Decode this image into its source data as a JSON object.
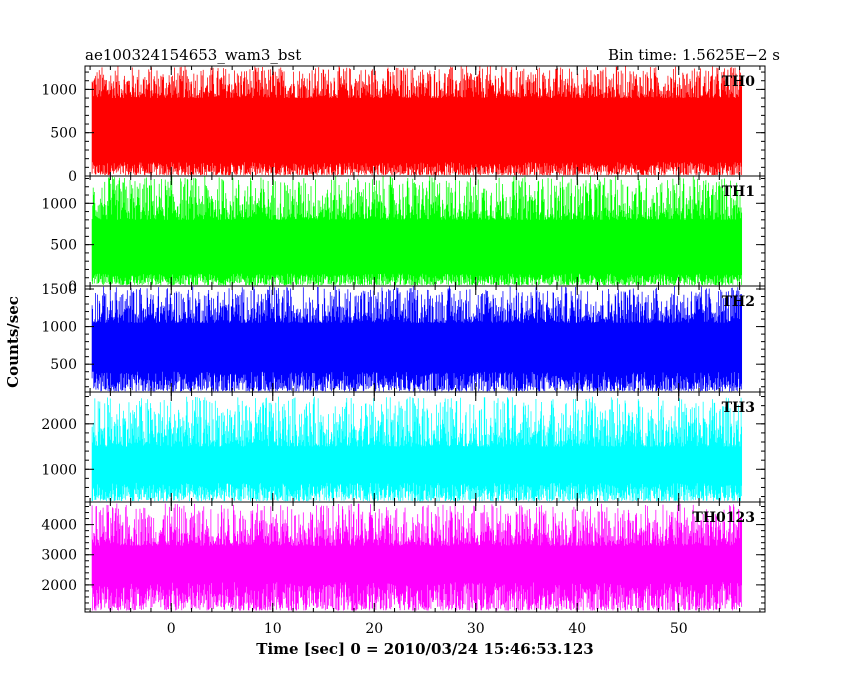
{
  "header": {
    "title": "ae100324154653_wam3_bst",
    "bin_time": "Bin time: 1.5625E−2 s"
  },
  "chart_data": {
    "type": "line",
    "xlabel": "Time [sec] 0 = 2010/03/24 15:46:53.123",
    "ylabel": "Counts/sec",
    "xlim": [
      -8.5,
      58.5
    ],
    "x_range": [
      -7.8,
      56.2
    ],
    "x_ticks": [
      0,
      10,
      20,
      30,
      40,
      50
    ],
    "x_tick_labels": [
      "0",
      "10",
      "20",
      "30",
      "40",
      "50"
    ],
    "x_minor_step": 2,
    "grid": false,
    "panels": [
      {
        "name": "TH0",
        "color": "#ff0000",
        "ylim": [
          0,
          1270
        ],
        "y_ticks": [
          0,
          500,
          1000
        ],
        "y_tick_labels": [
          "0",
          "500",
          "1000"
        ],
        "y_minor_step": 100,
        "envelope_low": [
          10,
          160
        ],
        "envelope_high": [
          900,
          1270
        ]
      },
      {
        "name": "TH1",
        "color": "#00ff00",
        "ylim": [
          0,
          1330
        ],
        "y_ticks": [
          0,
          500,
          1000
        ],
        "y_tick_labels": [
          "0",
          "500",
          "1000"
        ],
        "y_minor_step": 100,
        "envelope_low": [
          10,
          150
        ],
        "envelope_high": [
          800,
          1330
        ]
      },
      {
        "name": "TH2",
        "color": "#0000ff",
        "ylim": [
          130,
          1540
        ],
        "y_ticks": [
          500,
          1000,
          1500
        ],
        "y_tick_labels": [
          "500",
          "1000",
          "1500"
        ],
        "y_minor_step": 100,
        "envelope_low": [
          140,
          400
        ],
        "envelope_high": [
          1050,
          1540
        ]
      },
      {
        "name": "TH3",
        "color": "#00ffff",
        "ylim": [
          280,
          2700
        ],
        "y_ticks": [
          1000,
          2000
        ],
        "y_tick_labels": [
          "1000",
          "2000"
        ],
        "y_minor_step": 200,
        "envelope_low": [
          300,
          700
        ],
        "envelope_high": [
          1500,
          2600
        ]
      },
      {
        "name": "TH0123",
        "color": "#ff00ff",
        "ylim": [
          1100,
          4750
        ],
        "y_ticks": [
          2000,
          3000,
          4000
        ],
        "y_tick_labels": [
          "2000",
          "3000",
          "4000"
        ],
        "y_minor_step": 200,
        "envelope_low": [
          1150,
          2100
        ],
        "envelope_high": [
          3300,
          4700
        ]
      }
    ]
  }
}
